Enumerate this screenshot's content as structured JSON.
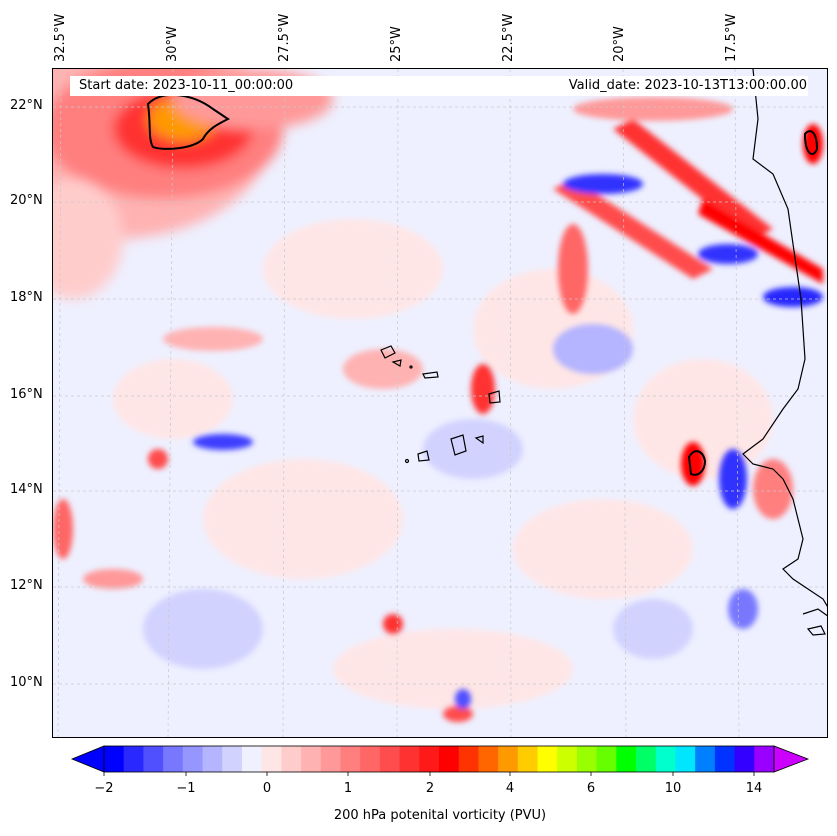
{
  "map": {
    "start_date": "Start date: 2023-10-11_00:00:00",
    "valid_date": "Valid_date: 2023-10-13T13:00:00.00",
    "lon_labels": [
      "32.5°W",
      "30°W",
      "27.5°W",
      "25°W",
      "22.5°W",
      "20°W",
      "17.5°W"
    ],
    "lat_labels": [
      "22°N",
      "20°N",
      "18°N",
      "16°N",
      "14°N",
      "12°N",
      "10°N"
    ],
    "background_color": "#eef0ff",
    "coastline_color": "#000000"
  },
  "colorbar": {
    "title": "200 hPa potenital vorticity (PVU)",
    "tick_labels": [
      "−2",
      "−1",
      "0",
      "1",
      "2",
      "4",
      "6",
      "10",
      "14"
    ],
    "colors": [
      "#0000ff",
      "#2828ff",
      "#5050ff",
      "#7878ff",
      "#9696ff",
      "#b4b4ff",
      "#d2d2ff",
      "#f0f0ff",
      "#ffe6e6",
      "#ffcccc",
      "#ffb2b2",
      "#ff9999",
      "#ff7f7f",
      "#ff6666",
      "#ff4c4c",
      "#ff3232",
      "#ff1919",
      "#ff0000",
      "#ff3300",
      "#ff6600",
      "#ff9900",
      "#ffcc00",
      "#ffff00",
      "#ccff00",
      "#99ff00",
      "#66ff00",
      "#00ff00",
      "#00ff66",
      "#00ffcc",
      "#00e6ff",
      "#0080ff",
      "#0033ff",
      "#3300ff",
      "#9900ff"
    ],
    "extend_min_color": "#0000ff",
    "extend_max_color": "#cc00ff"
  }
}
